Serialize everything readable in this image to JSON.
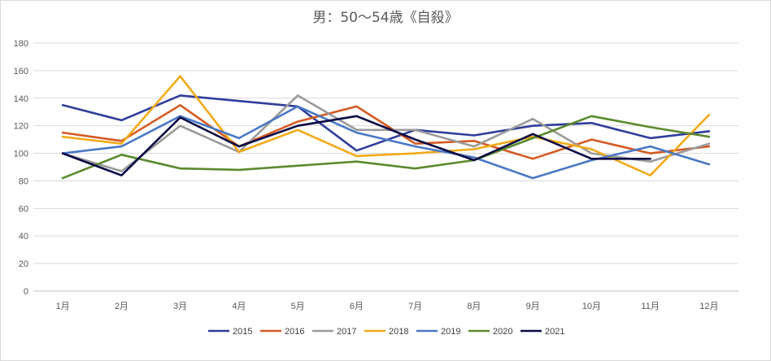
{
  "chart_data": {
    "type": "line",
    "title": "男：50～54歳《自殺》",
    "xlabel": "",
    "ylabel": "",
    "categories": [
      "1月",
      "2月",
      "3月",
      "4月",
      "5月",
      "6月",
      "7月",
      "8月",
      "9月",
      "10月",
      "11月",
      "12月"
    ],
    "ylim": [
      0,
      180
    ],
    "yticks": [
      0,
      20,
      40,
      60,
      80,
      100,
      120,
      140,
      160,
      180
    ],
    "grid": true,
    "legend_position": "bottom",
    "series": [
      {
        "name": "2015",
        "color": "#2f3d9a",
        "values": [
          135,
          124,
          142,
          138,
          134,
          102,
          117,
          113,
          120,
          122,
          111,
          116
        ]
      },
      {
        "name": "2016",
        "color": "#d45a23",
        "values": [
          115,
          109,
          135,
          105,
          123,
          134,
          107,
          109,
          96,
          110,
          100,
          105
        ]
      },
      {
        "name": "2017",
        "color": "#9a9a9a",
        "values": [
          100,
          87,
          120,
          101,
          142,
          117,
          117,
          105,
          125,
          100,
          94,
          107
        ]
      },
      {
        "name": "2018",
        "color": "#f2aa19",
        "values": [
          112,
          107,
          156,
          101,
          117,
          98,
          100,
          103,
          112,
          103,
          84,
          128
        ]
      },
      {
        "name": "2019",
        "color": "#4a78c4",
        "values": [
          100,
          105,
          127,
          111,
          134,
          115,
          105,
          97,
          82,
          95,
          105,
          92
        ]
      },
      {
        "name": "2020",
        "color": "#5b8a2e",
        "values": [
          82,
          99,
          89,
          88,
          91,
          94,
          89,
          95,
          111,
          127,
          119,
          112
        ]
      },
      {
        "name": "2021",
        "color": "#0b0b45",
        "values": [
          100,
          84,
          126,
          105,
          120,
          127,
          110,
          95,
          114,
          96,
          96,
          null
        ]
      }
    ]
  }
}
